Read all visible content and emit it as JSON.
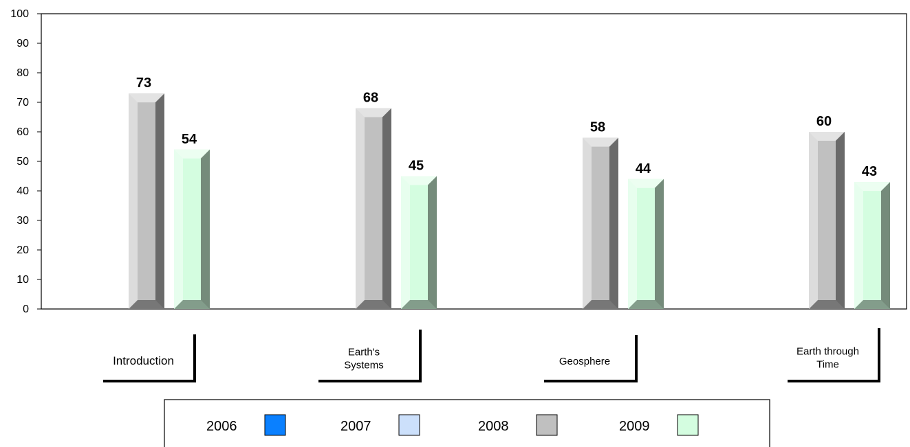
{
  "chart_data": {
    "type": "bar",
    "categories": [
      "Introduction",
      "Earth's Systems",
      "Geosphere",
      "Earth through Time"
    ],
    "series": [
      {
        "name": "2006",
        "values": [
          null,
          null,
          null,
          null
        ]
      },
      {
        "name": "2007",
        "values": [
          null,
          null,
          null,
          null
        ]
      },
      {
        "name": "2008",
        "values": [
          73,
          68,
          58,
          60
        ]
      },
      {
        "name": "2009",
        "values": [
          54,
          45,
          44,
          43
        ]
      }
    ],
    "ylim": [
      0,
      100
    ],
    "yticks": [
      0,
      10,
      20,
      30,
      40,
      50,
      60,
      70,
      80,
      90,
      100
    ],
    "grid": false,
    "legend_position": "bottom",
    "category_label_lines": [
      [
        "Introduction"
      ],
      [
        "Earth's",
        "Systems"
      ],
      [
        "Geosphere"
      ],
      [
        "Earth through",
        "Time"
      ]
    ],
    "colors": {
      "2006": "#0a80ff",
      "2007": "#cce0fb",
      "2008": "#c0c0c0",
      "2009": "#d4fde0"
    }
  }
}
